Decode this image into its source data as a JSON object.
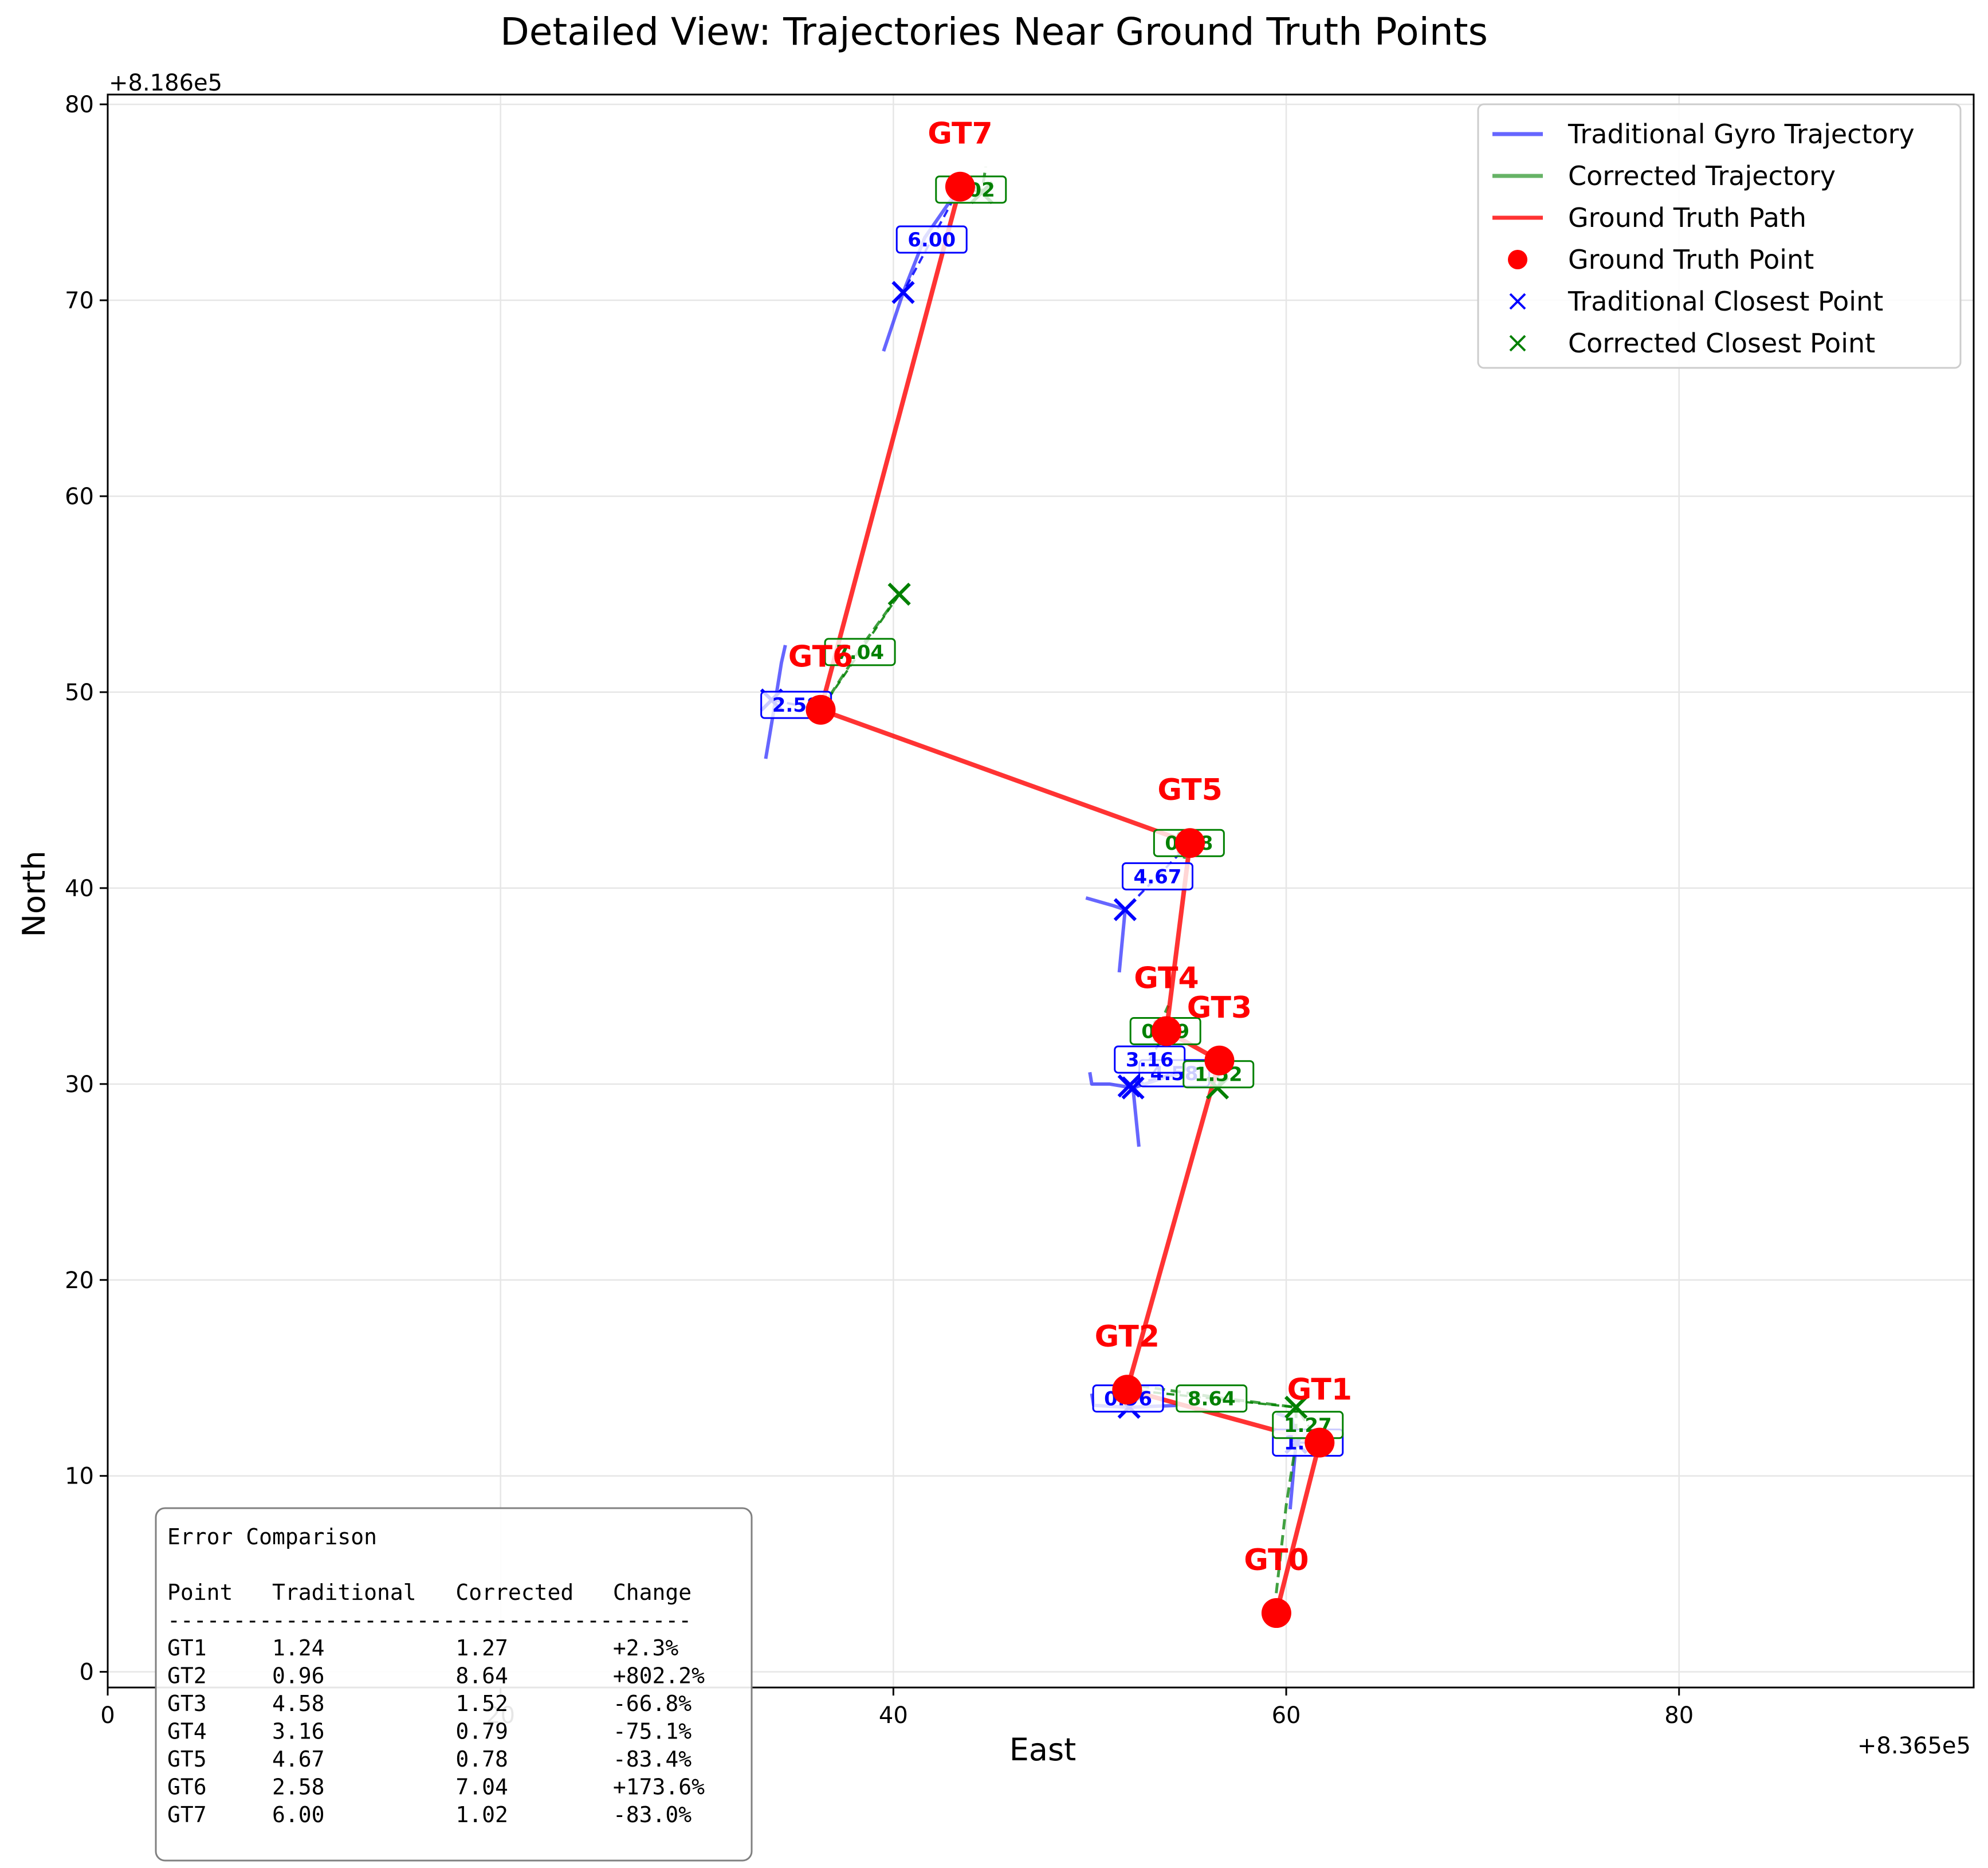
{
  "chart_data": {
    "type": "line",
    "title": "Detailed View: Trajectories Near Ground Truth Points",
    "xlabel": "East",
    "ylabel": "North",
    "x_offset_label": "+8.365e5",
    "y_offset_label": "+8.186e5",
    "xlim": [
      0,
      95
    ],
    "ylim": [
      -0.8,
      80.5
    ],
    "x_ticks": [
      0,
      20,
      40,
      60,
      80
    ],
    "y_ticks": [
      0,
      10,
      20,
      30,
      40,
      50,
      60,
      70,
      80
    ],
    "grid": true,
    "legend_position": "top-right",
    "colors": {
      "traditional": "#0000ff",
      "corrected": "#008000",
      "ground_truth": "#ff0000",
      "grid": "#e6e6e6"
    },
    "legend": [
      {
        "label": "Traditional Gyro Trajectory",
        "kind": "line",
        "color": "#0000ff"
      },
      {
        "label": "Corrected Trajectory",
        "kind": "line",
        "color": "#008000"
      },
      {
        "label": "Ground Truth Path",
        "kind": "line",
        "color": "#ff0000"
      },
      {
        "label": "Ground Truth Point",
        "kind": "dot",
        "color": "#ff0000"
      },
      {
        "label": "Traditional Closest Point",
        "kind": "x",
        "color": "#0000ff"
      },
      {
        "label": "Corrected Closest Point",
        "kind": "x",
        "color": "#008000"
      }
    ],
    "ground_truth_points": [
      {
        "name": "GT0",
        "x": 59.5,
        "y": 3.0
      },
      {
        "name": "GT1",
        "x": 61.7,
        "y": 11.7
      },
      {
        "name": "GT2",
        "x": 51.9,
        "y": 14.4
      },
      {
        "name": "GT3",
        "x": 56.6,
        "y": 31.2
      },
      {
        "name": "GT4",
        "x": 53.9,
        "y": 32.7
      },
      {
        "name": "GT5",
        "x": 55.1,
        "y": 42.3
      },
      {
        "name": "GT6",
        "x": 36.3,
        "y": 49.1
      },
      {
        "name": "GT7",
        "x": 43.4,
        "y": 75.8
      }
    ],
    "traditional_closest": [
      {
        "gt": "GT1",
        "x": 60.5,
        "y": 11.7,
        "label": "1.24"
      },
      {
        "gt": "GT2",
        "x": 52.0,
        "y": 13.5,
        "label": "0.96"
      },
      {
        "gt": "GT3",
        "x": 52.0,
        "y": 29.9,
        "label": "4.58"
      },
      {
        "gt": "GT4",
        "x": 52.2,
        "y": 29.8,
        "label": "3.16"
      },
      {
        "gt": "GT5",
        "x": 51.8,
        "y": 38.9,
        "label": "4.67"
      },
      {
        "gt": "GT6",
        "x": 33.8,
        "y": 49.6,
        "label": "2.58"
      },
      {
        "gt": "GT7",
        "x": 40.5,
        "y": 70.4,
        "label": "6.00"
      }
    ],
    "corrected_closest": [
      {
        "gt": "GT1",
        "x": 60.5,
        "y": 13.5,
        "label": "1.27"
      },
      {
        "gt": "GT2",
        "x": 60.5,
        "y": 13.5,
        "label": "8.64"
      },
      {
        "gt": "GT3",
        "x": 56.5,
        "y": 29.8,
        "label": "1.52"
      },
      {
        "gt": "GT4",
        "x": 53.8,
        "y": 32.7,
        "label": "0.79"
      },
      {
        "gt": "GT5",
        "x": 55.0,
        "y": 42.3,
        "label": "0.78"
      },
      {
        "gt": "GT6",
        "x": 40.3,
        "y": 55.0,
        "label": "7.04"
      },
      {
        "gt": "GT7",
        "x": 44.5,
        "y": 75.5,
        "label": "1.02"
      }
    ],
    "traditional_segments": [
      [
        [
          60.2,
          8.3
        ],
        [
          60.5,
          11.7
        ],
        [
          60.3,
          12.9
        ],
        [
          59.5,
          13.2
        ]
      ],
      [
        [
          50.1,
          14.2
        ],
        [
          50.2,
          13.6
        ],
        [
          52.0,
          13.5
        ],
        [
          54.5,
          13.6
        ]
      ],
      [
        [
          50.0,
          30.6
        ],
        [
          50.1,
          30.0
        ],
        [
          51.0,
          30.0
        ],
        [
          52.2,
          29.8
        ],
        [
          52.5,
          26.8
        ]
      ],
      [
        [
          52.2,
          29.8
        ],
        [
          54.0,
          30.4
        ],
        [
          56.3,
          30.8
        ]
      ],
      [
        [
          49.8,
          39.5
        ],
        [
          51.2,
          39.1
        ],
        [
          51.8,
          38.9
        ],
        [
          51.5,
          35.7
        ]
      ],
      [
        [
          33.5,
          46.6
        ],
        [
          33.9,
          49.0
        ],
        [
          34.3,
          51.5
        ],
        [
          34.5,
          52.4
        ]
      ],
      [
        [
          39.5,
          67.4
        ],
        [
          40.5,
          70.4
        ],
        [
          41.6,
          73.2
        ],
        [
          43.4,
          75.8
        ]
      ]
    ],
    "corrected_segments": [
      [
        [
          59.4,
          3.2
        ],
        [
          60.0,
          8.5
        ],
        [
          60.5,
          11.7
        ],
        [
          60.5,
          13.5
        ]
      ],
      [
        [
          52.5,
          14.6
        ],
        [
          56.5,
          14.0
        ],
        [
          60.5,
          13.5
        ]
      ],
      [
        [
          56.5,
          29.8
        ],
        [
          56.8,
          30.5
        ]
      ],
      [
        [
          53.5,
          32.9
        ],
        [
          54.0,
          34.0
        ]
      ],
      [
        [
          54.8,
          41.5
        ],
        [
          55.0,
          42.3
        ]
      ],
      [
        [
          36.3,
          49.1
        ],
        [
          38.5,
          52.5
        ],
        [
          40.3,
          55.0
        ]
      ],
      [
        [
          43.4,
          75.8
        ],
        [
          44.5,
          75.5
        ],
        [
          44.7,
          76.8
        ]
      ]
    ],
    "error_table": {
      "title": "Error Comparison",
      "header": "Point   Traditional   Corrected   Change",
      "divider": "----------------------------------------",
      "rows": [
        "GT1     1.24          1.27        +2.3%",
        "GT2     0.96          8.64        +802.2%",
        "GT3     4.58          1.52        -66.8%",
        "GT4     3.16          0.79        -75.1%",
        "GT5     4.67          0.78        -83.4%",
        "GT6     2.58          7.04        +173.6%",
        "GT7     6.00          1.02        -83.0%"
      ]
    }
  }
}
